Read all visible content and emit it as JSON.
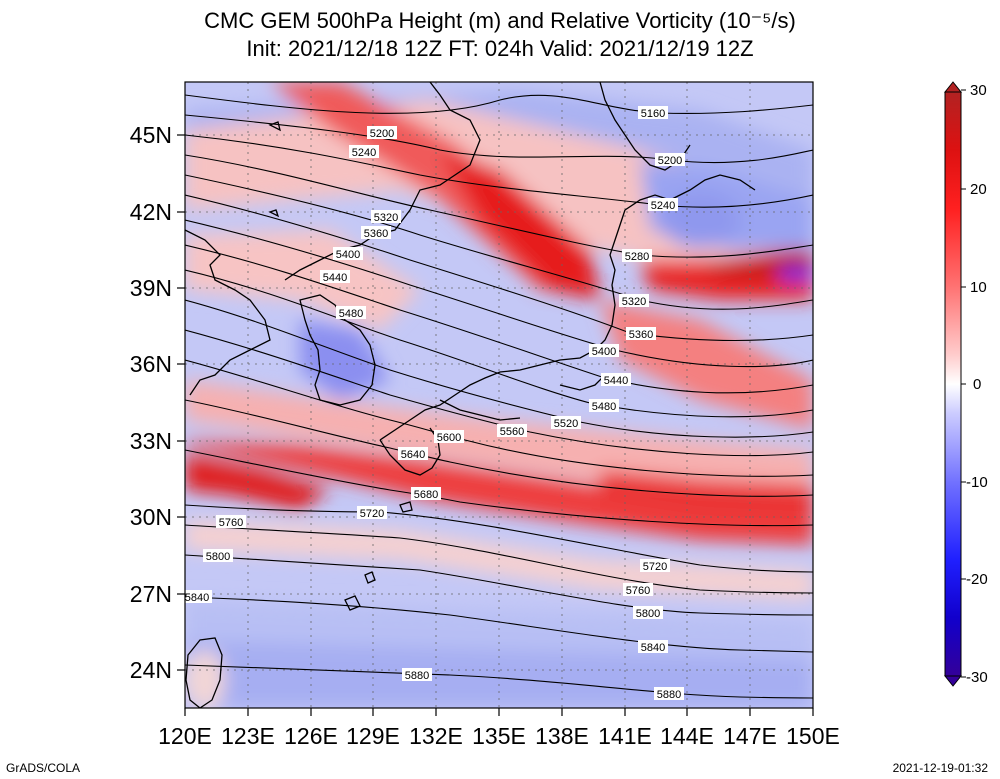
{
  "title_line1": "CMC GEM 500hPa Height (m) and Relative Vorticity (10⁻⁵/s)",
  "title_line2": "Init: 2021/12/18 12Z  FT: 024h  Valid: 2021/12/19 12Z",
  "footer_left": "GrADS/COLA",
  "footer_right": "2021-12-19-01:32",
  "chart_data": {
    "type": "heatmap",
    "description_fields": "500hPa geopotential height contours (m) over relative vorticity shading (10^-5/s)",
    "x_axis": {
      "label": "",
      "ticks": [
        "120E",
        "123E",
        "126E",
        "129E",
        "132E",
        "135E",
        "138E",
        "141E",
        "144E",
        "147E",
        "150E"
      ],
      "range": [
        120,
        150
      ]
    },
    "y_axis": {
      "label": "",
      "ticks": [
        "24N",
        "27N",
        "30N",
        "33N",
        "36N",
        "39N",
        "42N",
        "45N"
      ],
      "range": [
        22.5,
        47.5
      ]
    },
    "colorbar": {
      "ticks": [
        "30",
        "20",
        "10",
        "0",
        "-10",
        "-20",
        "-30"
      ],
      "range": [
        -30,
        30
      ],
      "colors": {
        "max": "#b22222",
        "high": "#ff0000",
        "mid_pos": "#ff9999",
        "zero": "#ffffff",
        "mid_neg": "#9999ff",
        "low": "#0000ff",
        "min": "#330099"
      }
    },
    "contours": {
      "units": "m",
      "levels": [
        "5160",
        "5200",
        "5240",
        "5280",
        "5320",
        "5360",
        "5400",
        "5440",
        "5480",
        "5520",
        "5560",
        "5600",
        "5640",
        "5680",
        "5720",
        "5760",
        "5800",
        "5840",
        "5880"
      ],
      "labels_left": [
        "5200",
        "5240",
        "5320",
        "5360",
        "5400",
        "5440",
        "5480",
        "5600",
        "5640",
        "5680",
        "5720",
        "5760",
        "5800",
        "5840",
        "5880"
      ],
      "labels_right": [
        "5160",
        "5200",
        "5240",
        "5280",
        "5320",
        "5360",
        "5400",
        "5440",
        "5480",
        "5520",
        "5560",
        "5720",
        "5760",
        "5800",
        "5840",
        "5880"
      ]
    }
  }
}
